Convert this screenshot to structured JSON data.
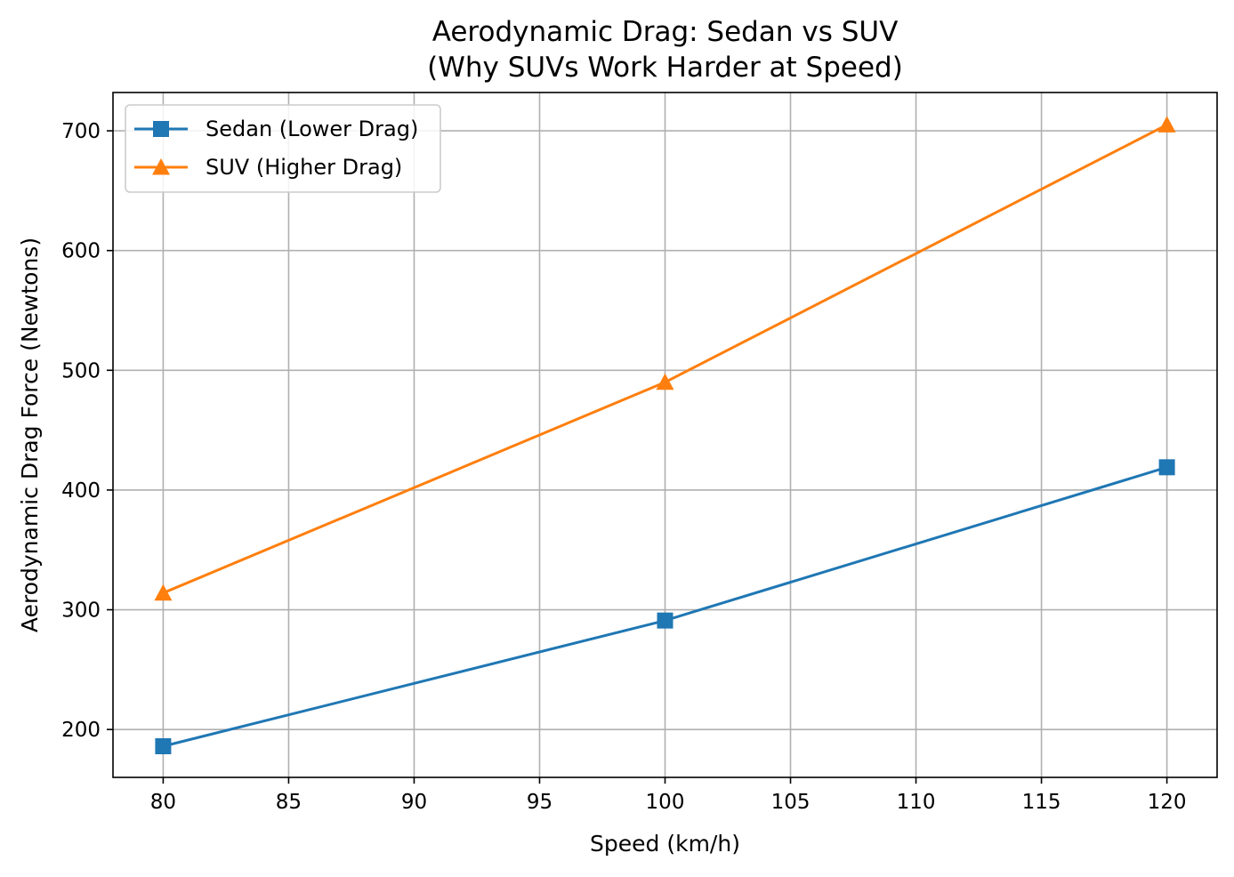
{
  "chart_data": {
    "type": "line",
    "title": "Aerodynamic Drag: Sedan vs SUV",
    "subtitle": "(Why SUVs Work Harder at Speed)",
    "xlabel": "Speed (km/h)",
    "ylabel": "Aerodynamic Drag Force (Newtons)",
    "x": [
      80,
      100,
      120
    ],
    "xlim": [
      78,
      122
    ],
    "ylim": [
      160,
      732
    ],
    "xticks": [
      80,
      85,
      90,
      95,
      100,
      105,
      110,
      115,
      120
    ],
    "yticks": [
      200,
      300,
      400,
      500,
      600,
      700
    ],
    "grid": true,
    "legend_position": "top-left",
    "series": [
      {
        "name": "Sedan (Lower Drag)",
        "values": [
          186,
          291,
          419
        ],
        "color": "#1f77b4",
        "marker": "square"
      },
      {
        "name": "SUV (Higher Drag)",
        "values": [
          314,
          490,
          705
        ],
        "color": "#ff7f0e",
        "marker": "triangle"
      }
    ]
  }
}
